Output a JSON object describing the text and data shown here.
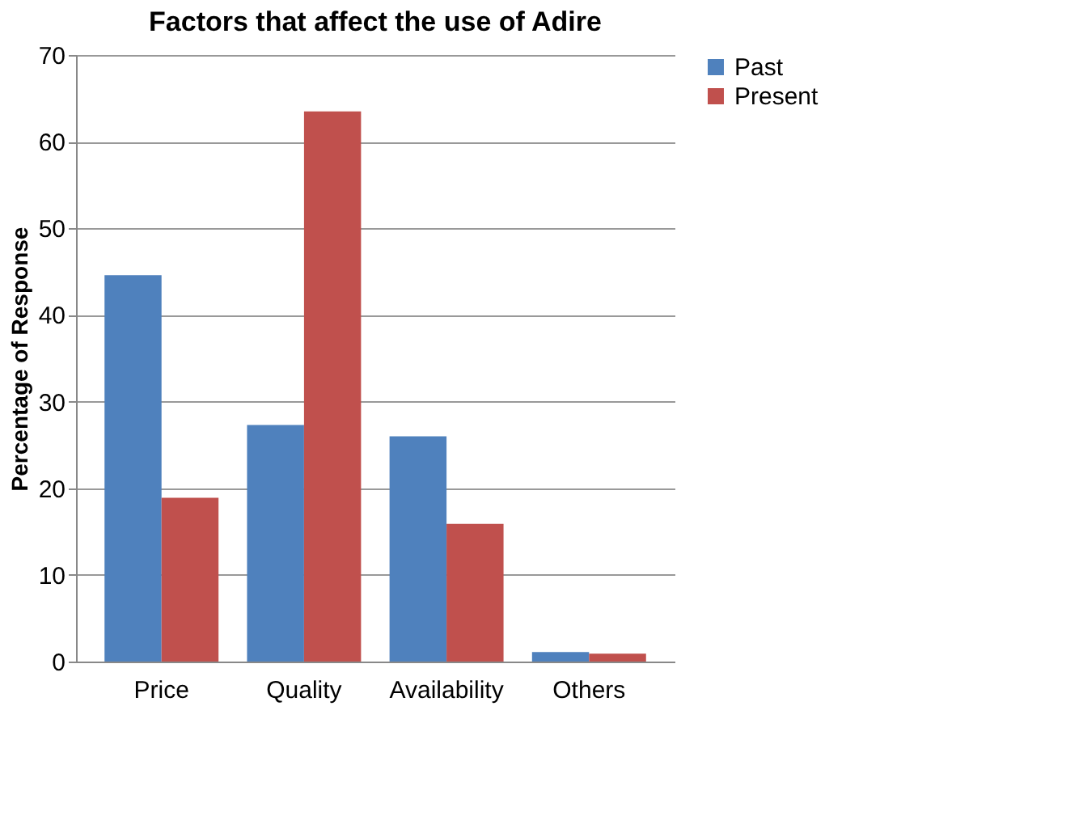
{
  "chart_data": {
    "type": "bar",
    "title": "Factors that affect the use of Adire",
    "ylabel": "Percentage of Response",
    "categories": [
      "Price",
      "Quality",
      "Availability",
      "Others"
    ],
    "series": [
      {
        "name": "Past",
        "color": "#4f81bd",
        "values": [
          44.6,
          27.3,
          26.0,
          1.1
        ]
      },
      {
        "name": "Present",
        "color": "#c0504d",
        "values": [
          18.9,
          63.5,
          15.9,
          0.9
        ]
      }
    ],
    "ylim": [
      0,
      70
    ],
    "yticks": [
      0,
      10,
      20,
      30,
      40,
      50,
      60,
      70
    ],
    "grid": "y",
    "legend": "right"
  }
}
